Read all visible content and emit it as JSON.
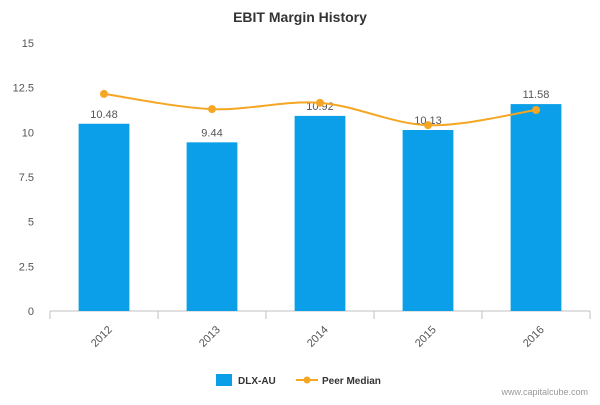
{
  "chart_data": {
    "type": "bar",
    "title": "EBIT Margin History",
    "categories": [
      "2012",
      "2013",
      "2014",
      "2015",
      "2016"
    ],
    "series": [
      {
        "name": "DLX-AU",
        "type": "bar",
        "color": "#0a9fe8",
        "values": [
          10.48,
          9.44,
          10.92,
          10.13,
          11.58
        ],
        "data_labels": [
          "10.48",
          "9.44",
          "10.92",
          "10.13",
          "11.58"
        ]
      },
      {
        "name": "Peer Median",
        "type": "line",
        "color": "#f5a623",
        "values": [
          12.15,
          11.3,
          11.65,
          10.4,
          11.25
        ]
      }
    ],
    "ylim": [
      0,
      15
    ],
    "yticks": [
      0,
      2.5,
      5,
      7.5,
      10,
      12.5,
      15
    ],
    "ytick_labels": [
      "0",
      "2.5",
      "5",
      "7.5",
      "10",
      "12.5",
      "15"
    ],
    "grid": false,
    "legend_position": "bottom",
    "watermark": "www.capitalcube.com"
  }
}
